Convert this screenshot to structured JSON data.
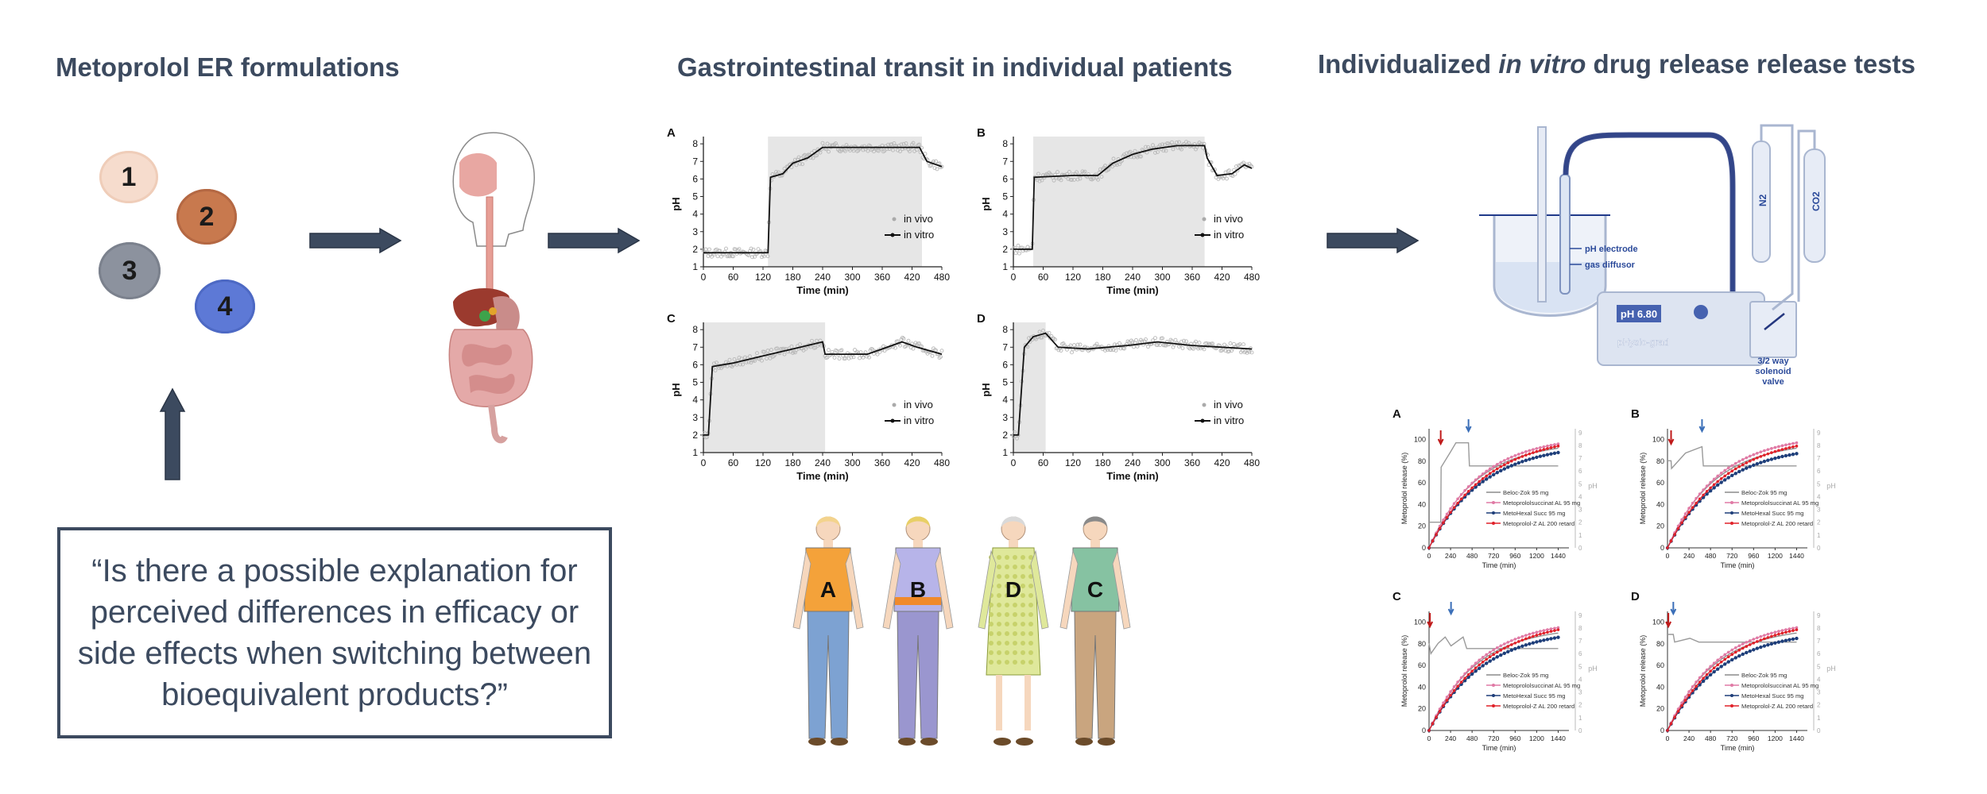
{
  "headings": {
    "left": "Metoprolol ER formulations",
    "middle": "Gastrointestinal transit in individual patients",
    "right_before": "Individualized ",
    "right_italic": "in vitro",
    "right_after": " drug release release tests"
  },
  "tablets": [
    {
      "label": "1",
      "color": "#f6dccd"
    },
    {
      "label": "2",
      "color": "#c8794e"
    },
    {
      "label": "3",
      "color": "#8c929e"
    },
    {
      "label": "4",
      "color": "#5d79d6"
    }
  ],
  "question": "“Is there a possible explanation for perceived differences in efficacy or side effects when switching between bioequivalent products?”",
  "ph_panels": {
    "xlabel": "Time (min)",
    "ylabel": "pH",
    "xticks": [
      "0",
      "60",
      "120",
      "180",
      "240",
      "300",
      "360",
      "420",
      "480"
    ],
    "yticks": [
      "1",
      "2",
      "3",
      "4",
      "5",
      "6",
      "7",
      "8"
    ],
    "legend_vivo": "in vivo",
    "legend_vitro": "in vitro",
    "panels": [
      {
        "label": "A",
        "shade": [
          130,
          440
        ],
        "vitro": [
          [
            0,
            1.8
          ],
          [
            130,
            1.8
          ],
          [
            135,
            6.1
          ],
          [
            160,
            6.3
          ],
          [
            180,
            6.9
          ],
          [
            210,
            7.2
          ],
          [
            240,
            7.8
          ],
          [
            300,
            7.8
          ],
          [
            435,
            7.8
          ],
          [
            450,
            7.0
          ],
          [
            480,
            6.7
          ]
        ]
      },
      {
        "label": "B",
        "shade": [
          40,
          385
        ],
        "vitro": [
          [
            0,
            2.0
          ],
          [
            38,
            2.0
          ],
          [
            42,
            6.1
          ],
          [
            120,
            6.2
          ],
          [
            170,
            6.2
          ],
          [
            200,
            6.9
          ],
          [
            240,
            7.4
          ],
          [
            280,
            7.7
          ],
          [
            330,
            7.9
          ],
          [
            385,
            7.9
          ],
          [
            390,
            7.2
          ],
          [
            410,
            6.2
          ],
          [
            440,
            6.3
          ],
          [
            465,
            6.8
          ],
          [
            480,
            6.6
          ]
        ]
      },
      {
        "label": "C",
        "shade": [
          0,
          245
        ],
        "vitro": [
          [
            0,
            2.0
          ],
          [
            10,
            2.0
          ],
          [
            18,
            5.9
          ],
          [
            60,
            6.1
          ],
          [
            120,
            6.5
          ],
          [
            180,
            6.9
          ],
          [
            240,
            7.3
          ],
          [
            245,
            6.6
          ],
          [
            330,
            6.6
          ],
          [
            360,
            6.9
          ],
          [
            400,
            7.3
          ],
          [
            430,
            7.0
          ],
          [
            480,
            6.6
          ]
        ]
      },
      {
        "label": "D",
        "shade": [
          0,
          65
        ],
        "vitro": [
          [
            0,
            2.0
          ],
          [
            10,
            2.0
          ],
          [
            22,
            7.0
          ],
          [
            40,
            7.6
          ],
          [
            65,
            7.8
          ],
          [
            90,
            7.0
          ],
          [
            150,
            6.9
          ],
          [
            230,
            7.1
          ],
          [
            290,
            7.3
          ],
          [
            360,
            7.1
          ],
          [
            420,
            7.0
          ],
          [
            480,
            6.9
          ]
        ]
      }
    ]
  },
  "patients": [
    {
      "label": "A",
      "shirt": "#f4a23a",
      "pants": "#7da2d2"
    },
    {
      "label": "B",
      "shirt": "#b7b4e9",
      "pants": "#9a96cf"
    },
    {
      "label": "D",
      "shirt": "#dfe89b",
      "pants": "#dfe89b"
    },
    {
      "label": "C",
      "shirt": "#86c2a2",
      "pants": "#c9a57f"
    }
  ],
  "apparatus": {
    "ph_electrode": "pH electrode",
    "gas_diffusor": "gas diffusor",
    "display": "pH 6.80",
    "brand": "pHysio-grad",
    "valve": "3/2 way solenoid valve",
    "gas1": "N2",
    "gas2": "CO2"
  },
  "release_panels": {
    "xlabel": "Time (min)",
    "ylabel": "Metoprolol release (%)",
    "y2label": "pH",
    "xticks": [
      "0",
      "240",
      "480",
      "720",
      "960",
      "1200",
      "1440"
    ],
    "yticks": [
      "0",
      "20",
      "40",
      "60",
      "80",
      "100"
    ],
    "y2ticks": [
      "0",
      "1",
      "2",
      "3",
      "4",
      "5",
      "6",
      "7",
      "8",
      "9"
    ],
    "legend": [
      "Beloc-Zok 95 mg",
      "Metoprololsuccinat AL 95 mg",
      "MetoHexal Succ 95 mg",
      "Metoprolol-Z AL 200 retard"
    ],
    "panels": [
      {
        "label": "A",
        "red_arrow": 130,
        "blue_arrow": 440
      },
      {
        "label": "B",
        "red_arrow": 40,
        "blue_arrow": 385
      },
      {
        "label": "C",
        "red_arrow": 10,
        "blue_arrow": 245
      },
      {
        "label": "D",
        "red_arrow": 10,
        "blue_arrow": 65
      }
    ]
  },
  "colors": {
    "dark": "#3c4a5f",
    "shade": "#e6e6e6",
    "belocs": "#8c8c8c",
    "al95": "#e07aa5",
    "metohexal": "#1f3f7a",
    "z200": "#e0222a"
  }
}
